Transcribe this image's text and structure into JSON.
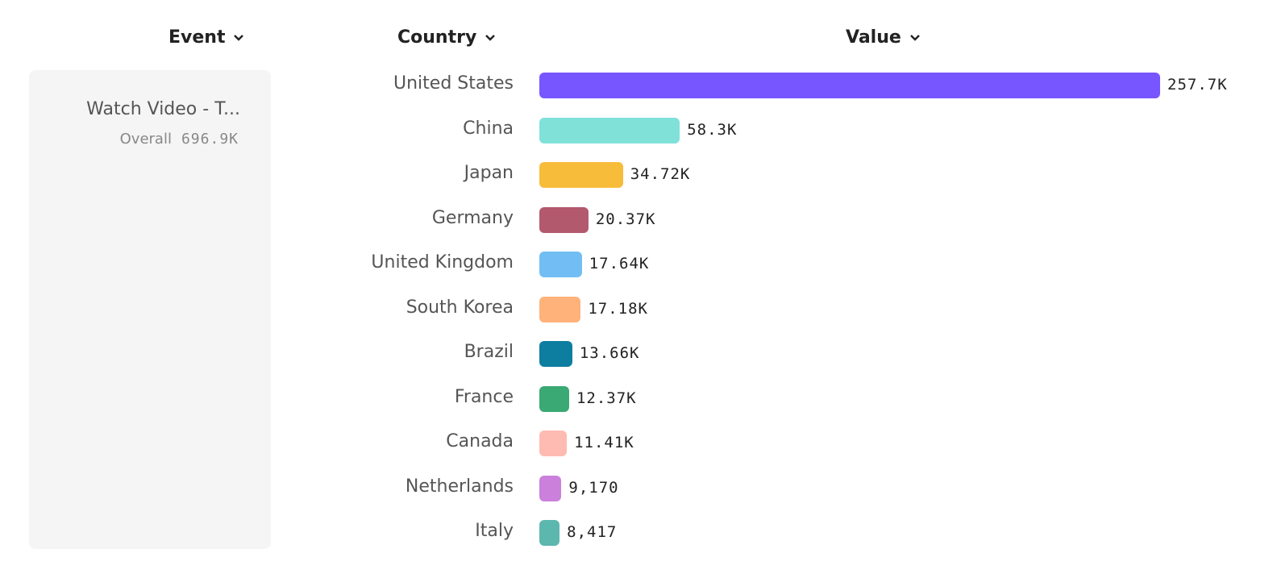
{
  "headers": {
    "event": "Event",
    "country": "Country",
    "value": "Value"
  },
  "event": {
    "name": "Watch Video - T...",
    "overall_label": "Overall",
    "overall_value": "696.9K"
  },
  "chart_data": {
    "type": "bar",
    "orientation": "horizontal",
    "categories": [
      "United States",
      "China",
      "Japan",
      "Germany",
      "United Kingdom",
      "South Korea",
      "Brazil",
      "France",
      "Canada",
      "Netherlands",
      "Italy"
    ],
    "values": [
      257700,
      58300,
      34720,
      20370,
      17640,
      17180,
      13660,
      12370,
      11410,
      9170,
      8417
    ],
    "labels": [
      "257.7K",
      "58.3K",
      "34.72K",
      "20.37K",
      "17.64K",
      "17.18K",
      "13.66K",
      "12.37K",
      "11.41K",
      "9,170",
      "8,417"
    ],
    "colors": [
      "#7856ff",
      "#80e1d9",
      "#f8bc3b",
      "#b2596e",
      "#72bef4",
      "#ffb27a",
      "#0d7ea0",
      "#3ba974",
      "#febbb2",
      "#cb80dc",
      "#5cb7af"
    ],
    "xlabel": "",
    "ylabel": "",
    "grid": false
  }
}
